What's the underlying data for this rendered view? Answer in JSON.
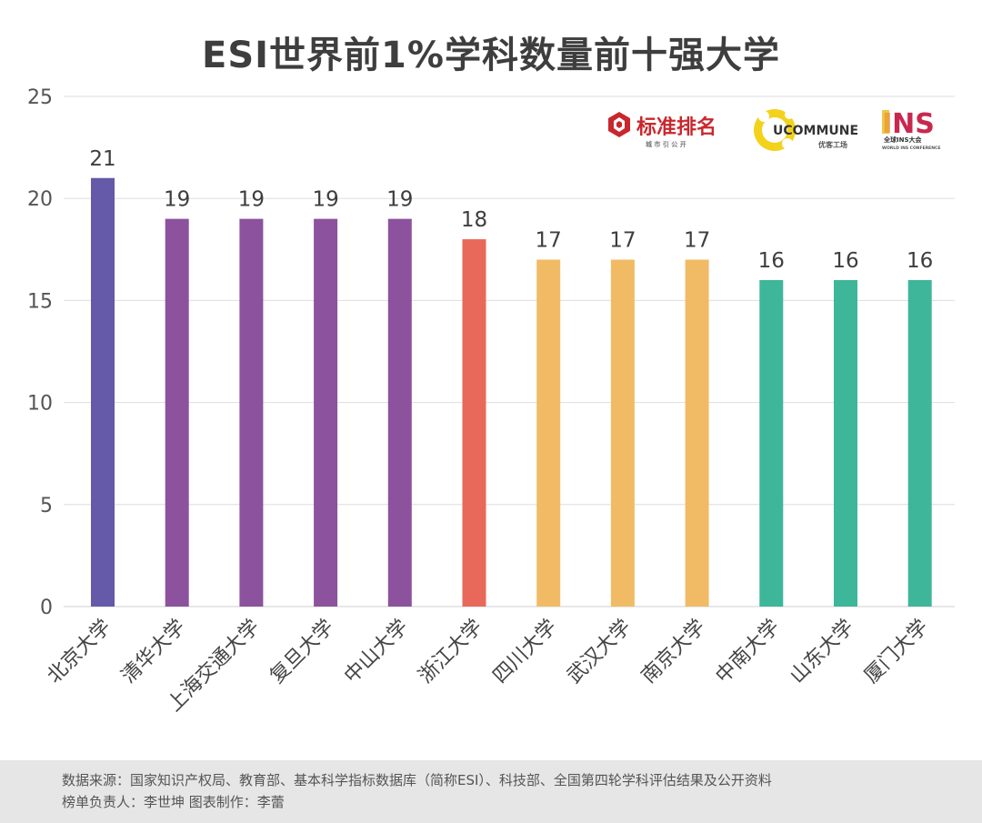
{
  "title": "ESI世界前1%学科数量前十强大学",
  "logos": {
    "biaozhun": {
      "name": "标准排名",
      "sub": "城 市 引 公 开"
    },
    "ucommune": {
      "name": "UCOMMUNE",
      "sub": "优客工场"
    },
    "ins": {
      "name": "INS",
      "sub": "全球INS大会",
      "sub2": "WORLD INS CONFERENCE"
    }
  },
  "chart_data": {
    "type": "bar",
    "title": "ESI世界前1%学科数量前十强大学",
    "categories": [
      "北京大学",
      "清华大学",
      "上海交通大学",
      "复旦大学",
      "中山大学",
      "浙江大学",
      "四川大学",
      "武汉大学",
      "南京大学",
      "中南大学",
      "山东大学",
      "厦门大学"
    ],
    "values": [
      21,
      19,
      19,
      19,
      19,
      18,
      17,
      17,
      17,
      16,
      16,
      16
    ],
    "colors": [
      "#6559a9",
      "#8c529e",
      "#8c529e",
      "#8c529e",
      "#8c529e",
      "#e8695a",
      "#f1bb66",
      "#f1bb66",
      "#f1bb66",
      "#3eb69a",
      "#3eb69a",
      "#3eb69a"
    ],
    "ylim": [
      0,
      25
    ],
    "yticks": [
      0,
      5,
      10,
      15,
      20,
      25
    ],
    "xlabel": "",
    "ylabel": "",
    "grid": true,
    "data_labels": true
  },
  "footer": {
    "source": "数据来源：国家知识产权局、教育部、基本科学指标数据库（简称ESI）、科技部、全国第四轮学科评估结果及公开资料",
    "credits": "榜单负责人：李世坤   图表制作：李蕾"
  }
}
